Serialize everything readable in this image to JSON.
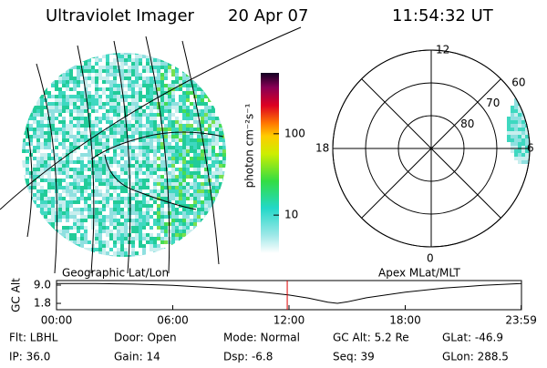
{
  "header": {
    "instrument": "Ultraviolet Imager",
    "date": "20 Apr 07",
    "time": "11:54:32 UT"
  },
  "colorbar": {
    "label": "photon cm⁻²s⁻¹",
    "lim": [
      3.4,
      560
    ],
    "ticks": [
      10,
      100
    ],
    "log": true
  },
  "left_map": {
    "label": "Geographic Lat/Lon"
  },
  "polar": {
    "label": "Apex MLat/MLT",
    "rings": [
      80,
      70,
      60
    ],
    "mlt": {
      "top": "12",
      "left": "18",
      "right": "6",
      "bottom": "0"
    }
  },
  "altitude": {
    "ylabel": "GC Alt",
    "ylim": [
      -0.7,
      10.8
    ],
    "yticks": [
      {
        "value": 9,
        "label": "9.0"
      },
      {
        "value": 1.8,
        "label": "1.8"
      }
    ],
    "xlim": [
      0,
      24
    ],
    "xticks": [
      {
        "value": 0,
        "label": "00:00"
      },
      {
        "value": 6,
        "label": "06:00"
      },
      {
        "value": 12,
        "label": "12:00"
      },
      {
        "value": 18,
        "label": "18:00"
      },
      {
        "value": 23.983,
        "label": "23:59"
      }
    ],
    "x": [
      0,
      2,
      4,
      6,
      8,
      10,
      12,
      13,
      14,
      14.5,
      15,
      16,
      18,
      20,
      22,
      24
    ],
    "values": [
      9.6,
      9.6,
      9.4,
      8.9,
      8.0,
      6.8,
      5.1,
      3.9,
      2.3,
      1.8,
      2.4,
      4.0,
      6.2,
      7.8,
      8.9,
      9.6
    ],
    "current": 11.909
  },
  "status": [
    [
      "Flt: LBHL",
      "Door: Open",
      "Mode: Normal",
      "GC Alt: 5.2 Re",
      "GLat: -46.9"
    ],
    [
      "IP: 36.0",
      "Gain: 14",
      "Dsp: -6.8",
      "Seq: 39",
      "GLon: 288.5"
    ]
  ]
}
